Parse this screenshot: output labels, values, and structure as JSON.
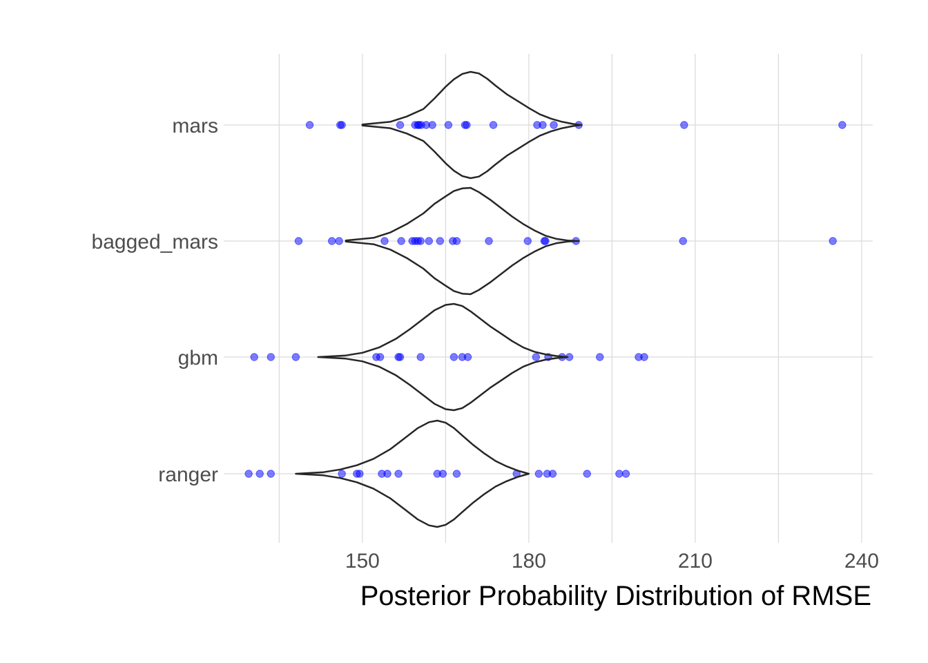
{
  "chart_data": {
    "type": "violin",
    "title": "",
    "xlabel": "Posterior Probability Distribution of RMSE",
    "ylabel": "",
    "xlim": [
      125,
      242
    ],
    "x_ticks": [
      150,
      180,
      210,
      240
    ],
    "categories": [
      "mars",
      "bagged_mars",
      "gbm",
      "ranger"
    ],
    "grid": true,
    "point_color": "#0000ff",
    "violin_color": "#262626",
    "series": [
      {
        "name": "mars",
        "points": [
          140.5,
          146,
          146.3,
          156.8,
          159.5,
          160,
          160.2,
          160.6,
          161.5,
          162.6,
          165.5,
          168.5,
          168.8,
          173.6,
          181.5,
          182.5,
          184.5,
          189,
          208,
          236.5
        ],
        "violin": {
          "y": [
            150,
            155,
            158,
            161,
            163,
            165,
            166.5,
            168,
            169.5,
            171,
            172.5,
            174,
            176,
            178,
            180,
            182,
            184,
            186,
            188,
            189.5
          ],
          "density": [
            0.01,
            0.06,
            0.16,
            0.3,
            0.5,
            0.72,
            0.86,
            0.96,
            1.0,
            0.97,
            0.87,
            0.74,
            0.58,
            0.45,
            0.32,
            0.2,
            0.12,
            0.06,
            0.02,
            0.0
          ]
        }
      },
      {
        "name": "bagged_mars",
        "points": [
          138.5,
          144.5,
          145.8,
          154,
          157,
          159,
          159.5,
          160,
          160.5,
          162,
          164,
          166.3,
          167,
          172.8,
          179.8,
          182.8,
          183,
          188.5,
          207.8,
          234.8
        ],
        "violin": {
          "y": [
            147,
            152,
            155,
            158,
            161,
            163,
            165,
            166.5,
            168,
            169.5,
            171,
            173,
            175,
            177,
            179,
            181,
            183,
            185,
            187,
            189
          ],
          "density": [
            0.01,
            0.06,
            0.16,
            0.32,
            0.52,
            0.7,
            0.84,
            0.94,
            0.99,
            1.0,
            0.92,
            0.78,
            0.62,
            0.46,
            0.32,
            0.2,
            0.1,
            0.04,
            0.01,
            0.0
          ]
        }
      },
      {
        "name": "gbm",
        "points": [
          130.5,
          133.5,
          138,
          152.5,
          153.2,
          156.5,
          156.8,
          160.5,
          166.5,
          168,
          169,
          181.3,
          183.5,
          186,
          187.3,
          192.8,
          199.8,
          200.8
        ],
        "violin": {
          "y": [
            142,
            147,
            150,
            153,
            156,
            158.5,
            161,
            163,
            165,
            166.5,
            168,
            169.5,
            171,
            173,
            175,
            177,
            179,
            181,
            183,
            185,
            187
          ],
          "density": [
            0.0,
            0.03,
            0.08,
            0.18,
            0.34,
            0.52,
            0.72,
            0.88,
            0.98,
            1.0,
            0.96,
            0.86,
            0.74,
            0.58,
            0.44,
            0.3,
            0.18,
            0.1,
            0.05,
            0.02,
            0.0
          ]
        }
      },
      {
        "name": "ranger",
        "points": [
          129.5,
          131.5,
          133.5,
          146.3,
          149,
          149.5,
          153.5,
          154.5,
          156.5,
          163.5,
          164.5,
          167,
          177.8,
          181.8,
          183.3,
          184.3,
          190.5,
          196.3,
          197.5
        ],
        "violin": {
          "y": [
            138,
            143,
            146,
            149,
            152,
            155,
            157.5,
            160,
            162,
            163.5,
            165,
            166.5,
            168,
            170,
            172,
            174,
            176,
            178,
            180
          ],
          "density": [
            0.0,
            0.03,
            0.08,
            0.16,
            0.28,
            0.46,
            0.66,
            0.86,
            0.97,
            1.0,
            0.96,
            0.86,
            0.72,
            0.54,
            0.38,
            0.24,
            0.14,
            0.06,
            0.0
          ]
        }
      }
    ]
  }
}
